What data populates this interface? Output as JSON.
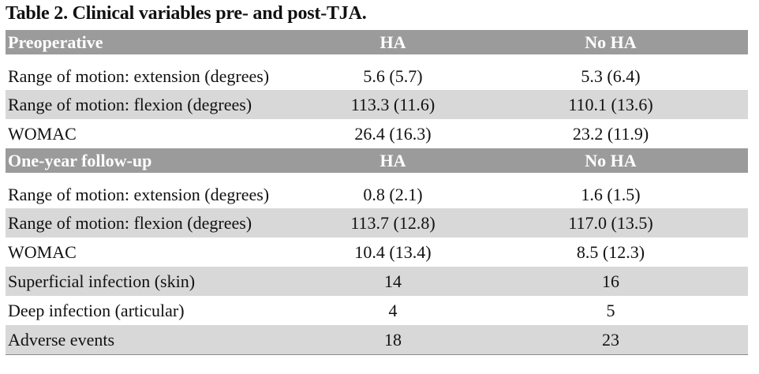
{
  "caption": "Table 2. Clinical variables pre- and post-TJA.",
  "sections": [
    {
      "header": {
        "label": "Preoperative",
        "col2": "HA",
        "col3": "No HA"
      },
      "rows": [
        {
          "label": "Range of motion: extension (degrees)",
          "ha": "5.6 (5.7)",
          "no_ha": "5.3 (6.4)"
        },
        {
          "label": "Range of motion: flexion (degrees)",
          "ha": "113.3 (11.6)",
          "no_ha": "110.1 (13.6)"
        },
        {
          "label": "WOMAC",
          "ha": "26.4 (16.3)",
          "no_ha": "23.2 (11.9)"
        }
      ]
    },
    {
      "header": {
        "label": "One-year follow-up",
        "col2": "HA",
        "col3": "No HA"
      },
      "rows": [
        {
          "label": "Range of motion: extension (degrees)",
          "ha": "0.8 (2.1)",
          "no_ha": "1.6 (1.5)"
        },
        {
          "label": "Range of motion: flexion (degrees)",
          "ha": "113.7 (12.8)",
          "no_ha": "117.0 (13.5)"
        },
        {
          "label": "WOMAC",
          "ha": "10.4 (13.4)",
          "no_ha": "8.5 (12.3)"
        },
        {
          "label": "Superficial infection (skin)",
          "ha": "14",
          "no_ha": "16"
        },
        {
          "label": "Deep infection (articular)",
          "ha": "4",
          "no_ha": "5"
        },
        {
          "label": "Adverse events",
          "ha": "18",
          "no_ha": "23"
        }
      ]
    }
  ]
}
